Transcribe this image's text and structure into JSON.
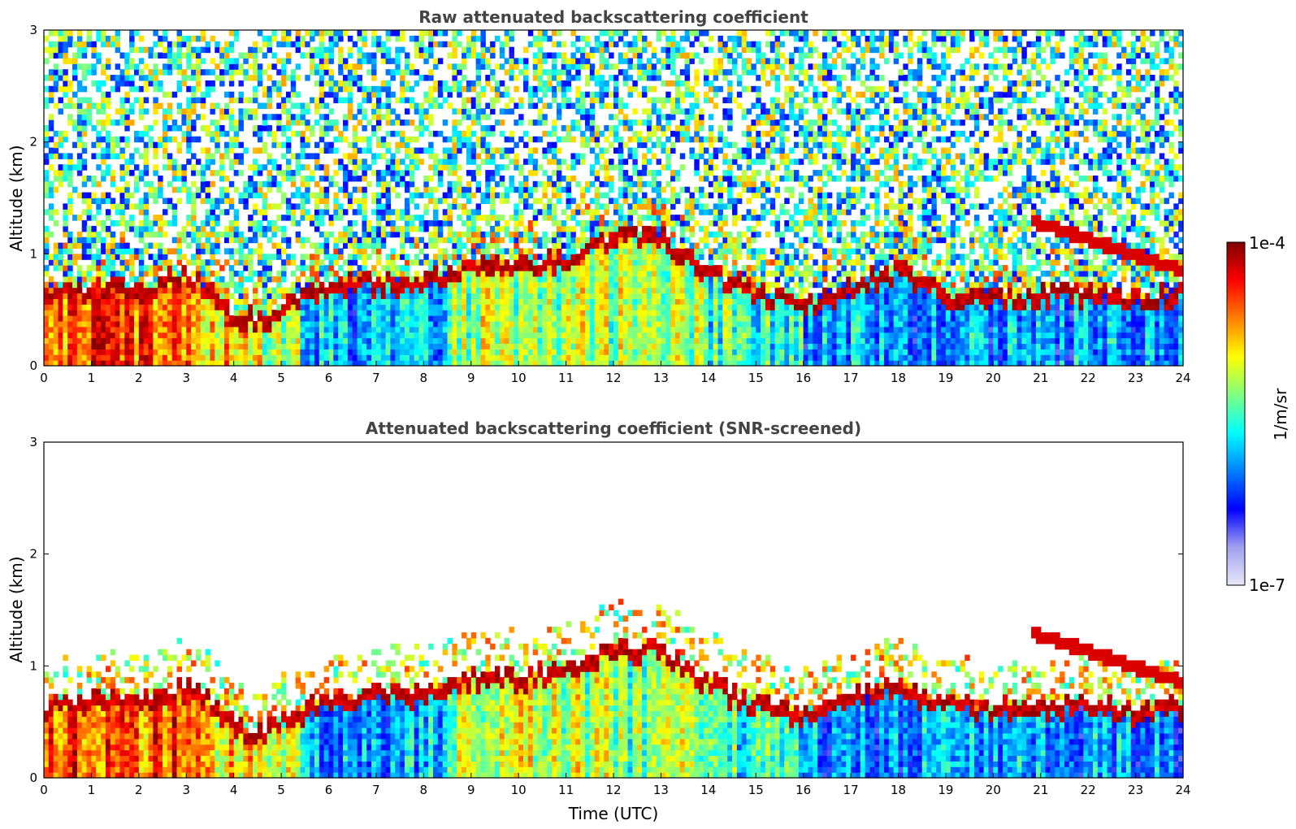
{
  "chart_data": [
    {
      "type": "heatmap",
      "title": "Raw attenuated backscattering coefficient",
      "xlabel": "",
      "ylabel": "Altitude (km)",
      "xlim": [
        0,
        24
      ],
      "ylim": [
        0,
        3
      ],
      "xticks": [
        "0",
        "1",
        "2",
        "3",
        "4",
        "5",
        "6",
        "7",
        "8",
        "9",
        "10",
        "11",
        "12",
        "13",
        "14",
        "15",
        "16",
        "17",
        "18",
        "19",
        "20",
        "21",
        "22",
        "23",
        "24"
      ],
      "yticks": [
        "0",
        "1",
        "2",
        "3"
      ],
      "grid": false,
      "aerosol_layer_top_km": [
        [
          0,
          0.65
        ],
        [
          1,
          0.75
        ],
        [
          2,
          0.75
        ],
        [
          3,
          0.85
        ],
        [
          3.5,
          0.75
        ],
        [
          4,
          0.5
        ],
        [
          4.5,
          0.45
        ],
        [
          5,
          0.55
        ],
        [
          5.5,
          0.65
        ],
        [
          6,
          0.75
        ],
        [
          7,
          0.8
        ],
        [
          8,
          0.8
        ],
        [
          9,
          0.95
        ],
        [
          10,
          0.95
        ],
        [
          11,
          1.0
        ],
        [
          12,
          1.2
        ],
        [
          13,
          1.2
        ],
        [
          14,
          0.9
        ],
        [
          15,
          0.7
        ],
        [
          16,
          0.6
        ],
        [
          17,
          0.75
        ],
        [
          18,
          0.9
        ],
        [
          19,
          0.7
        ],
        [
          20,
          0.65
        ],
        [
          21,
          0.7
        ],
        [
          22,
          0.7
        ],
        [
          23,
          0.65
        ],
        [
          24,
          0.7
        ]
      ],
      "elevated_layer": {
        "time_range": [
          20.8,
          24
        ],
        "altitude_km": [
          1.3,
          0.85
        ]
      },
      "noise_above_layer": true
    },
    {
      "type": "heatmap",
      "title": "Attenuated backscattering coefficient (SNR-screened)",
      "xlabel": "Time (UTC)",
      "ylabel": "Altitude (km)",
      "xlim": [
        0,
        24
      ],
      "ylim": [
        0,
        3
      ],
      "xticks": [
        "0",
        "1",
        "2",
        "3",
        "4",
        "5",
        "6",
        "7",
        "8",
        "9",
        "10",
        "11",
        "12",
        "13",
        "14",
        "15",
        "16",
        "17",
        "18",
        "19",
        "20",
        "21",
        "22",
        "23",
        "24"
      ],
      "yticks": [
        "0",
        "1",
        "2",
        "3"
      ],
      "grid": false,
      "noise_above_layer": false
    }
  ],
  "colorbar": {
    "label": "1/m/sr",
    "max_label": "1e-4",
    "min_label": "1e-7",
    "colormap": "jet",
    "colors": [
      "#e8e8f8",
      "#a0a0f0",
      "#0000ff",
      "#0080ff",
      "#00ffff",
      "#80ff80",
      "#ffff00",
      "#ff8000",
      "#ff0000",
      "#800000"
    ]
  }
}
